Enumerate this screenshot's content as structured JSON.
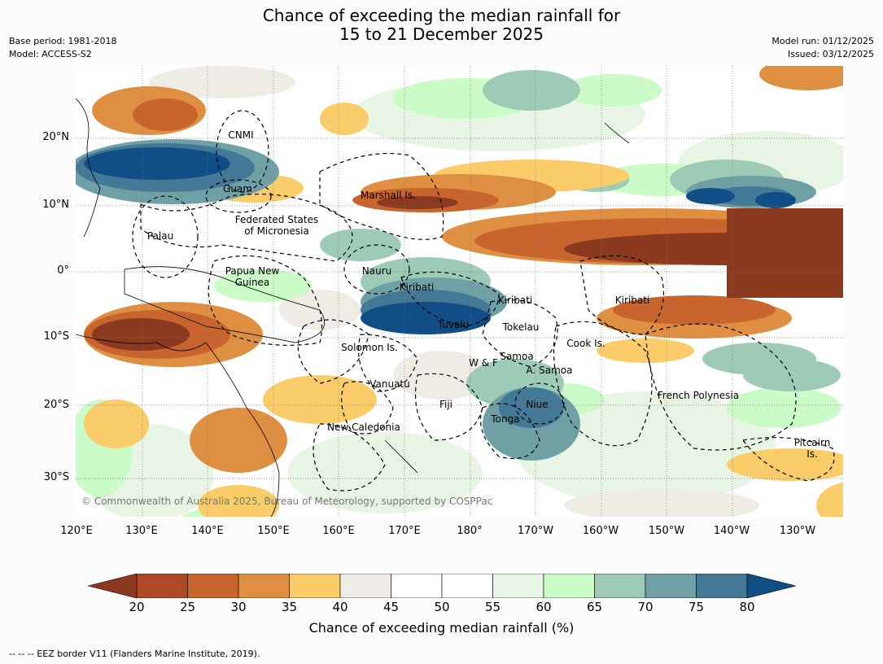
{
  "title": {
    "line1": "Chance of exceeding the median rainfall for",
    "line2": "15 to 21 December 2025"
  },
  "meta": {
    "base_period": "Base period: 1981-2018",
    "model": "Model: ACCESS-S2",
    "model_run": "Model run: 01/12/2025",
    "issued": "Issued: 03/12/2025"
  },
  "map": {
    "lon_ticks": [
      "120°E",
      "130°E",
      "140°E",
      "150°E",
      "160°E",
      "170°E",
      "180°",
      "170°W",
      "160°W",
      "150°W",
      "140°W",
      "130°W"
    ],
    "lat_ticks": [
      "20°N",
      "10°N",
      "0°",
      "10°S",
      "20°S",
      "30°S"
    ],
    "places": {
      "cnmi": "CNMI",
      "guam": "Guam",
      "marshall": "Marshall Is.",
      "fsm_line1": "Federated States",
      "fsm_line2": "of Micronesia",
      "palau": "Palau",
      "png_line1": "Papua New",
      "png_line2": "Guinea",
      "nauru": "Nauru",
      "kiribati_w": "Kiribati",
      "kiribati_c": "Kiribati",
      "kiribati_e": "Kiribati",
      "tuvalu": "Tuvalu",
      "tokelau": "Tokelau",
      "cook": "Cook Is.",
      "solomon": "Solomon Is.",
      "wf": "W & F",
      "samoa": "Samoa",
      "asamoa": "A. Samoa",
      "vanuatu": "Vanuatu",
      "fiji": "Fiji",
      "niue": "Niue",
      "tonga": "Tonga",
      "french_polynesia": "French Polynesia",
      "new_caledonia": "New Caledonia",
      "pitcairn_line1": "Pitcairn",
      "pitcairn_line2": "Is."
    },
    "copyright": "© Commonwealth of Australia 2025, Bureau of Meteorology, supported by COSPPac"
  },
  "colorbar": {
    "labels": [
      "20",
      "25",
      "30",
      "35",
      "40",
      "45",
      "50",
      "55",
      "60",
      "65",
      "70",
      "75",
      "80"
    ],
    "colors": {
      "under": "#8b3a1f",
      "c20": "#ad4a25",
      "c25": "#c8652f",
      "c30": "#de8f42",
      "c35": "#fbcc6a",
      "c40": "#efece6",
      "c45": "#ffffff",
      "c50": "#ffffff",
      "c55": "#e8f5e4",
      "c60": "#cbfbc6",
      "c65": "#9dcbb6",
      "c70": "#6ea0a6",
      "c75": "#437996",
      "over": "#124e86"
    },
    "title": "Chance of exceeding median rainfall (%)"
  },
  "footnote": "--  --  -- EEZ border V11 (Flanders Marine Institute, 2019)."
}
